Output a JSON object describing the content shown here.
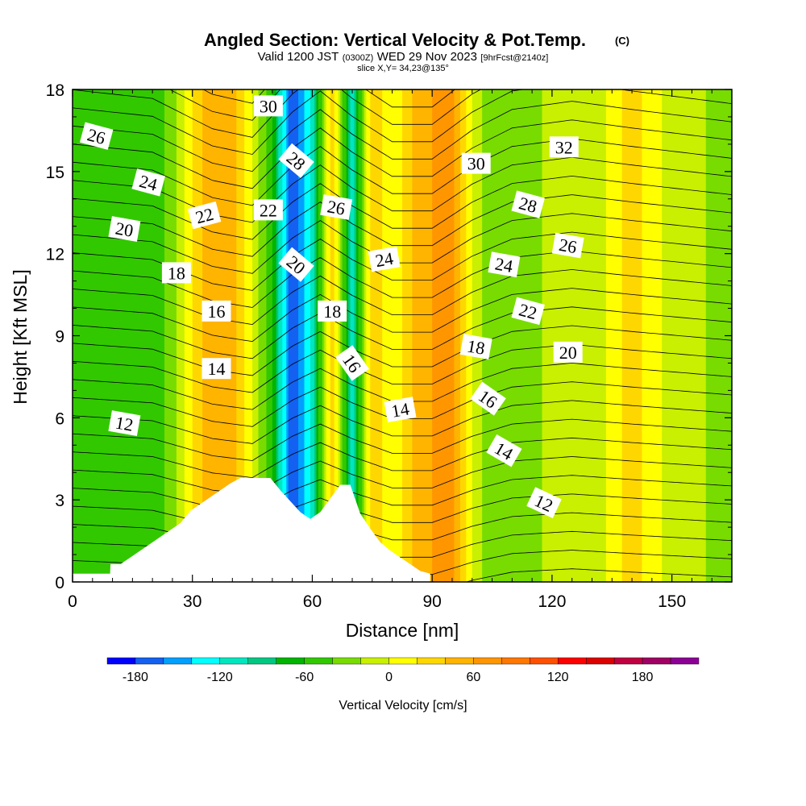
{
  "chart_data": {
    "type": "heatmap",
    "title": "Angled Section: Vertical Velocity & Pot.Temp.",
    "title_mark": "(C)",
    "subtitle": {
      "prefix": "Valid 1200 JST",
      "zulu": "(0300Z)",
      "date": "WED 29 Nov 2023",
      "forecast": "[9hrFcst@2140z]"
    },
    "slice_label": "slice X,Y= 34,23@135°",
    "xlabel": "Distance [nm]",
    "ylabel": "Height [Kft MSL]",
    "xlim": [
      0,
      165
    ],
    "ylim": [
      0,
      18
    ],
    "x_ticks": [
      0,
      30,
      60,
      90,
      120,
      150
    ],
    "y_ticks": [
      0,
      3,
      6,
      9,
      12,
      15,
      18
    ],
    "colorbar": {
      "label": "Vertical Velocity [cm/s]",
      "ticks": [
        -180,
        -120,
        -60,
        0,
        60,
        120,
        180
      ],
      "bins": [
        -200,
        -180,
        -160,
        -140,
        -120,
        -100,
        -80,
        -60,
        -40,
        -20,
        0,
        20,
        40,
        60,
        80,
        100,
        120,
        140,
        160,
        180,
        200,
        220
      ],
      "colors": [
        "#0000ff",
        "#1460f0",
        "#00a0ff",
        "#00ffff",
        "#00e6bf",
        "#00c882",
        "#00b400",
        "#32c800",
        "#78dc00",
        "#c8f000",
        "#ffff00",
        "#ffd700",
        "#ffb400",
        "#ff9600",
        "#ff7800",
        "#ff5000",
        "#ff0000",
        "#dc0000",
        "#c00040",
        "#a00064",
        "#8c0096"
      ]
    },
    "velocity_columns": {
      "x": [
        0,
        5,
        10,
        15,
        20,
        25,
        30,
        35,
        40,
        45,
        50,
        55,
        60,
        65,
        70,
        75,
        80,
        85,
        90,
        95,
        100,
        105,
        110,
        115,
        120,
        125,
        130,
        135,
        140,
        145,
        150,
        155,
        160,
        165
      ],
      "values": [
        -40,
        -50,
        -60,
        -45,
        -55,
        -30,
        20,
        60,
        50,
        0,
        -60,
        -180,
        -110,
        40,
        -110,
        40,
        0,
        40,
        60,
        65,
        0,
        -40,
        -20,
        -30,
        -10,
        -5,
        -20,
        10,
        30,
        10,
        -10,
        0,
        -30,
        -40
      ]
    },
    "topography": {
      "x": [
        0,
        9.4,
        9.5,
        12,
        14.5,
        17,
        19.5,
        22,
        24.5,
        27,
        29.5,
        32,
        34.5,
        37,
        39.5,
        42,
        44.5,
        47,
        49.5,
        52,
        54.5,
        57,
        59.5,
        62,
        64.5,
        67,
        69.5,
        72,
        74.5,
        77,
        79.5,
        82,
        84.5,
        87,
        89.5
      ],
      "y": [
        0.3,
        0.3,
        0.65,
        0.65,
        0.9,
        1.15,
        1.4,
        1.65,
        1.9,
        2.15,
        2.6,
        2.85,
        3.1,
        3.35,
        3.6,
        3.8,
        3.8,
        3.8,
        3.8,
        3.35,
        2.95,
        2.55,
        2.3,
        2.55,
        3.05,
        3.55,
        3.55,
        2.5,
        1.95,
        1.45,
        1.15,
        0.9,
        0.65,
        0.4,
        0.3
      ]
    },
    "isotherms": {
      "levels": [
        5,
        6,
        7,
        8,
        9,
        10,
        11,
        12,
        13,
        14,
        15,
        16,
        17,
        18,
        19,
        20,
        21,
        22,
        23,
        24,
        25,
        26,
        27,
        28,
        29,
        30,
        31,
        32,
        33,
        34,
        35,
        36
      ],
      "anchor_x": [
        0,
        20,
        35,
        45,
        55,
        62,
        70,
        80,
        90,
        100,
        110,
        125,
        140,
        165
      ],
      "offsets": [
        0.2,
        0.0,
        -0.7,
        -0.9,
        0.1,
        0.6,
        0.0,
        -0.6,
        -0.6,
        0.1,
        0.6,
        0.8,
        0.6,
        0.3
      ]
    },
    "contour_labels": [
      {
        "text": "30",
        "x": 49,
        "y": 17.4,
        "rot": 0
      },
      {
        "text": "26",
        "x": 6,
        "y": 16.3,
        "rot": 15
      },
      {
        "text": "28",
        "x": 56,
        "y": 15.4,
        "rot": 40
      },
      {
        "text": "30",
        "x": 101,
        "y": 15.3,
        "rot": 0
      },
      {
        "text": "32",
        "x": 123,
        "y": 15.9,
        "rot": 0
      },
      {
        "text": "24",
        "x": 19,
        "y": 14.6,
        "rot": 15
      },
      {
        "text": "22",
        "x": 33,
        "y": 13.4,
        "rot": -15
      },
      {
        "text": "22",
        "x": 49,
        "y": 13.6,
        "rot": 0
      },
      {
        "text": "26",
        "x": 66,
        "y": 13.7,
        "rot": 10
      },
      {
        "text": "28",
        "x": 114,
        "y": 13.8,
        "rot": 15
      },
      {
        "text": "20",
        "x": 13,
        "y": 12.9,
        "rot": 10
      },
      {
        "text": "26",
        "x": 124,
        "y": 12.3,
        "rot": 10
      },
      {
        "text": "20",
        "x": 56,
        "y": 11.6,
        "rot": 40
      },
      {
        "text": "24",
        "x": 78,
        "y": 11.8,
        "rot": -10
      },
      {
        "text": "24",
        "x": 108,
        "y": 11.6,
        "rot": 10
      },
      {
        "text": "18",
        "x": 26,
        "y": 11.3,
        "rot": 0
      },
      {
        "text": "16",
        "x": 36,
        "y": 9.9,
        "rot": 0
      },
      {
        "text": "18",
        "x": 65,
        "y": 9.9,
        "rot": 0
      },
      {
        "text": "22",
        "x": 114,
        "y": 9.9,
        "rot": 15
      },
      {
        "text": "18",
        "x": 101,
        "y": 8.6,
        "rot": 10
      },
      {
        "text": "20",
        "x": 124,
        "y": 8.4,
        "rot": 0
      },
      {
        "text": "16",
        "x": 70,
        "y": 8.0,
        "rot": 55
      },
      {
        "text": "14",
        "x": 36,
        "y": 7.8,
        "rot": 0
      },
      {
        "text": "16",
        "x": 104,
        "y": 6.7,
        "rot": 35
      },
      {
        "text": "14",
        "x": 82,
        "y": 6.3,
        "rot": -10
      },
      {
        "text": "12",
        "x": 13,
        "y": 5.8,
        "rot": 10
      },
      {
        "text": "14",
        "x": 108,
        "y": 4.8,
        "rot": 30
      },
      {
        "text": "12",
        "x": 118,
        "y": 2.9,
        "rot": 25
      }
    ]
  }
}
